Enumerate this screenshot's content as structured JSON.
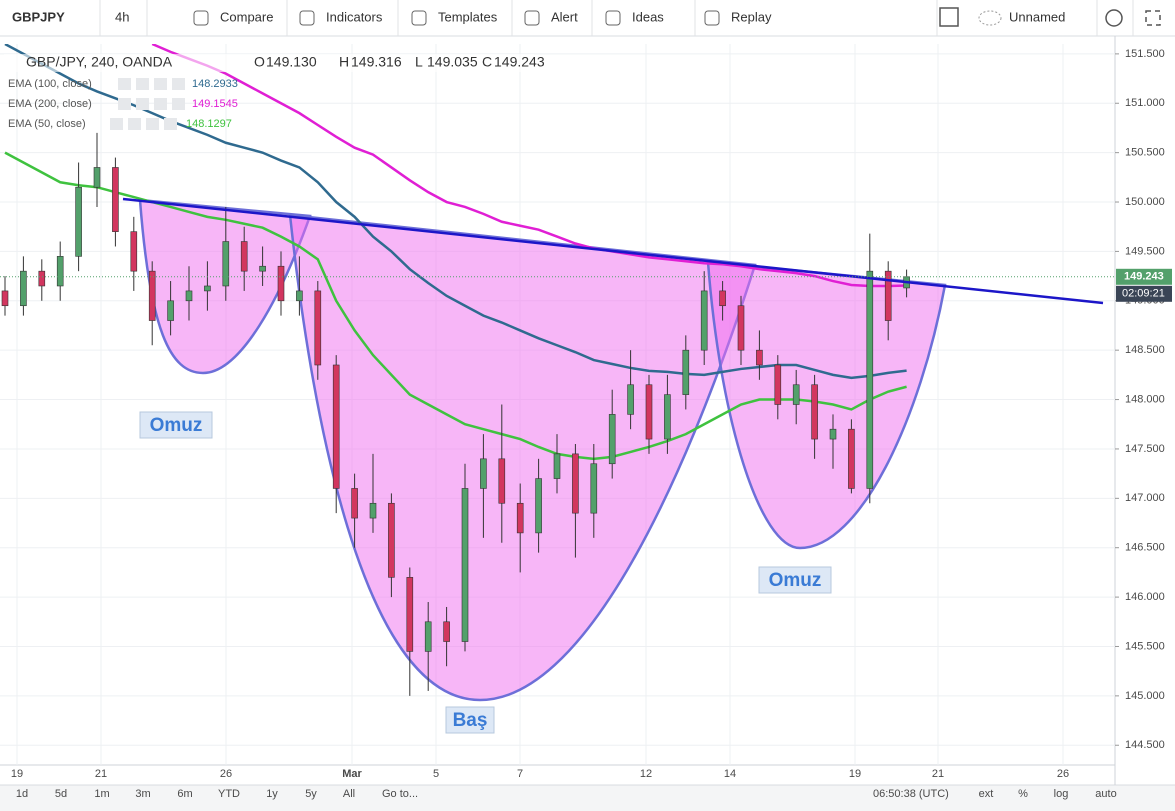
{
  "toolbar": {
    "symbol": "GBPJPY",
    "interval": "4h",
    "items": [
      "Compare",
      "Indicators",
      "Templates",
      "Alert",
      "Ideas",
      "Replay"
    ],
    "layout_name": "Unnamed"
  },
  "chart_data": {
    "type": "candlestick",
    "title": "GBP/JPY, 240, OANDA",
    "ohlc": [
      {
        "key": "O",
        "value": "149.130"
      },
      {
        "key": "H",
        "value": "149.316"
      },
      {
        "key": "L",
        "value": "149.035"
      },
      {
        "key": "C",
        "value": "149.243"
      }
    ],
    "x_labels": [
      "19",
      "21",
      "26",
      "Mar",
      "5",
      "7",
      "12",
      "14",
      "19",
      "21",
      "26"
    ],
    "open": [
      149.1,
      148.95,
      149.3,
      149.15,
      149.45,
      150.15,
      150.35,
      149.7,
      149.3,
      148.8,
      149.0,
      149.1,
      149.15,
      149.6,
      149.3,
      149.35,
      149.0,
      149.1,
      148.35,
      147.1,
      146.8,
      146.95,
      146.2,
      145.45,
      145.75,
      145.55,
      147.1,
      147.4,
      146.95,
      146.65,
      147.2,
      147.45,
      146.85,
      147.35,
      147.85,
      148.15,
      147.6,
      148.05,
      148.5,
      149.1,
      148.95,
      148.5,
      148.35,
      147.95,
      148.15,
      147.6,
      147.7,
      147.1,
      149.3,
      149.13
    ],
    "high": [
      149.25,
      149.45,
      149.42,
      149.6,
      150.4,
      150.7,
      150.45,
      149.85,
      149.4,
      149.2,
      149.35,
      149.4,
      149.95,
      149.75,
      149.55,
      149.5,
      149.45,
      149.2,
      148.45,
      147.25,
      147.45,
      147.05,
      146.3,
      145.95,
      145.9,
      147.35,
      147.65,
      147.95,
      147.15,
      147.4,
      147.65,
      147.55,
      147.55,
      148.1,
      148.5,
      148.25,
      148.25,
      148.65,
      149.3,
      149.2,
      149.05,
      148.7,
      148.45,
      148.3,
      148.25,
      147.85,
      147.8,
      149.68,
      149.4,
      149.316
    ],
    "low": [
      148.85,
      148.85,
      149.0,
      149.0,
      149.3,
      149.95,
      149.55,
      149.1,
      148.55,
      148.65,
      148.8,
      148.9,
      149.0,
      149.1,
      149.15,
      148.85,
      148.85,
      148.2,
      146.85,
      146.5,
      146.65,
      146.0,
      145.0,
      145.05,
      145.3,
      145.45,
      146.6,
      146.55,
      146.25,
      146.45,
      147.05,
      146.4,
      146.6,
      147.2,
      147.7,
      147.45,
      147.45,
      147.9,
      148.35,
      148.8,
      148.35,
      148.2,
      147.8,
      147.75,
      147.4,
      147.3,
      147.05,
      146.95,
      148.6,
      149.035
    ],
    "close": [
      148.95,
      149.3,
      149.15,
      149.45,
      150.15,
      150.35,
      149.7,
      149.3,
      148.8,
      149.0,
      149.1,
      149.15,
      149.6,
      149.3,
      149.35,
      149.0,
      149.1,
      148.35,
      147.1,
      146.8,
      146.95,
      146.2,
      145.45,
      145.75,
      145.55,
      147.1,
      147.4,
      146.95,
      146.65,
      147.2,
      147.45,
      146.85,
      147.35,
      147.85,
      148.15,
      147.6,
      148.05,
      148.5,
      149.1,
      148.95,
      148.5,
      148.35,
      147.95,
      148.15,
      147.6,
      147.7,
      147.1,
      149.3,
      148.8,
      149.243
    ],
    "colors": {
      "up": "#53a06b",
      "down": "#d2365f"
    },
    "series": [
      {
        "name": "EMA (100, close)",
        "color": "#2f6a8f",
        "values": [
          151.6,
          151.5,
          151.4,
          151.3,
          151.2,
          151.12,
          151.05,
          150.98,
          150.9,
          150.82,
          150.75,
          150.68,
          150.6,
          150.55,
          150.5,
          150.42,
          150.35,
          150.2,
          150.0,
          149.85,
          149.65,
          149.5,
          149.32,
          149.18,
          149.05,
          148.95,
          148.85,
          148.78,
          148.7,
          148.62,
          148.55,
          148.48,
          148.4,
          148.36,
          148.32,
          148.29,
          148.28,
          148.26,
          148.25,
          148.28,
          148.31,
          148.33,
          148.35,
          148.35,
          148.3,
          148.25,
          148.22,
          148.24,
          148.27,
          148.2933
        ]
      },
      {
        "name": "EMA (200, close)",
        "color": "#e01fd4",
        "values": [
          null,
          null,
          null,
          null,
          null,
          null,
          null,
          null,
          151.6,
          151.52,
          151.45,
          151.38,
          151.3,
          151.2,
          151.1,
          151.0,
          150.9,
          150.78,
          150.66,
          150.55,
          150.48,
          150.35,
          150.22,
          150.1,
          150.0,
          149.95,
          149.88,
          149.8,
          149.76,
          149.72,
          149.65,
          149.58,
          149.53,
          149.5,
          149.47,
          149.44,
          149.42,
          149.4,
          149.38,
          149.37,
          149.35,
          149.32,
          149.3,
          149.28,
          149.25,
          149.2,
          149.16,
          149.15,
          149.15,
          149.1545
        ]
      },
      {
        "name": "EMA (50, close)",
        "color": "#3fc23f",
        "values": [
          150.5,
          150.4,
          150.3,
          150.2,
          150.17,
          150.15,
          150.1,
          150.05,
          150.0,
          149.95,
          149.9,
          149.85,
          149.82,
          149.78,
          149.74,
          149.65,
          149.55,
          149.42,
          149.0,
          148.7,
          148.45,
          148.25,
          148.05,
          147.95,
          147.85,
          147.75,
          147.7,
          147.65,
          147.6,
          147.52,
          147.45,
          147.42,
          147.4,
          147.42,
          147.47,
          147.52,
          147.58,
          147.65,
          147.75,
          147.85,
          147.95,
          148.0,
          148.0,
          148.0,
          147.98,
          147.95,
          147.9,
          148.0,
          148.08,
          148.1297
        ]
      }
    ],
    "ylim": [
      144.3,
      151.6
    ],
    "yticks": [
      {
        "value": 144.5,
        "label": "144.500"
      },
      {
        "value": 145,
        "label": "145.000"
      },
      {
        "value": 145.5,
        "label": "145.500"
      },
      {
        "value": 146,
        "label": "146.000"
      },
      {
        "value": 146.5,
        "label": "146.500"
      },
      {
        "value": 147,
        "label": "147.000"
      },
      {
        "value": 147.5,
        "label": "147.500"
      },
      {
        "value": 148,
        "label": "148.000"
      },
      {
        "value": 148.5,
        "label": "148.500"
      },
      {
        "value": 149,
        "label": "149.000"
      },
      {
        "value": 149.5,
        "label": "149.500"
      },
      {
        "value": 150,
        "label": "150.000"
      },
      {
        "value": 150.5,
        "label": "150.500"
      },
      {
        "value": 151,
        "label": "151.000"
      },
      {
        "value": 151.5,
        "label": "151.500"
      }
    ],
    "grid": true,
    "last_price": {
      "value": 149.243,
      "label": "149.243"
    },
    "countdown": "02:09:21",
    "annotations": [
      "Omuz",
      "Baş",
      "Omuz"
    ]
  },
  "bottom_bar": {
    "ranges": [
      "1d",
      "5d",
      "1m",
      "3m",
      "6m",
      "YTD",
      "1y",
      "5y",
      "All"
    ],
    "goto": "Go to...",
    "time": "06:50:38 (UTC)",
    "options": [
      "ext",
      "%",
      "log",
      "auto"
    ]
  }
}
